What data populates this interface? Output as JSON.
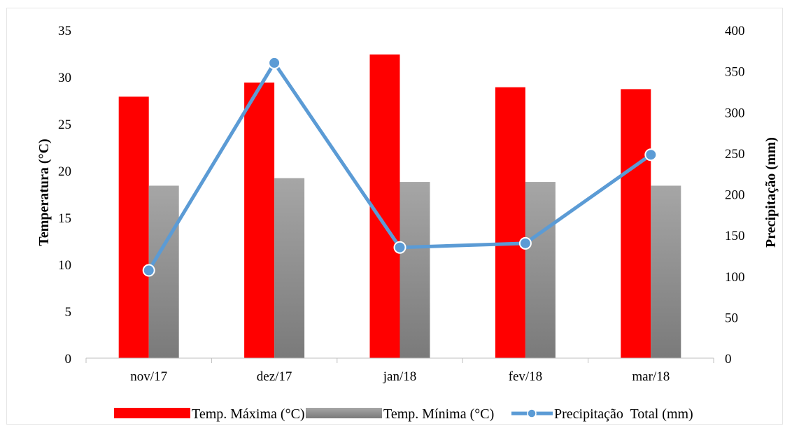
{
  "chart_data": {
    "type": "bar",
    "categories": [
      "nov/17",
      "dez/17",
      "jan/18",
      "fev/18",
      "mar/18"
    ],
    "series": [
      {
        "name": "Temp. Máxima (°C)",
        "kind": "bar",
        "axis": "left",
        "values": [
          27.9,
          29.4,
          32.4,
          28.9,
          28.7
        ],
        "color": "#ff0000"
      },
      {
        "name": "Temp. Mínima (°C)",
        "kind": "bar",
        "axis": "left",
        "values": [
          18.4,
          19.2,
          18.8,
          18.8,
          18.4
        ],
        "color": "#9e9e9e"
      },
      {
        "name": "Precipitação  Total (mm)",
        "kind": "line",
        "axis": "right",
        "values": [
          107,
          360,
          135,
          140,
          248
        ],
        "color": "#5b9bd5"
      }
    ],
    "ylabel": "Temperatura (°C)",
    "y2label": "Precipitação (mm)",
    "ylim": [
      0,
      35
    ],
    "y2lim": [
      0,
      400
    ],
    "yticks": [
      "0",
      "5",
      "10",
      "15",
      "20",
      "25",
      "30",
      "35"
    ],
    "y2ticks": [
      "0",
      "50",
      "100",
      "150",
      "200",
      "250",
      "300",
      "350",
      "400"
    ],
    "grid": false,
    "legend_position": "bottom"
  }
}
